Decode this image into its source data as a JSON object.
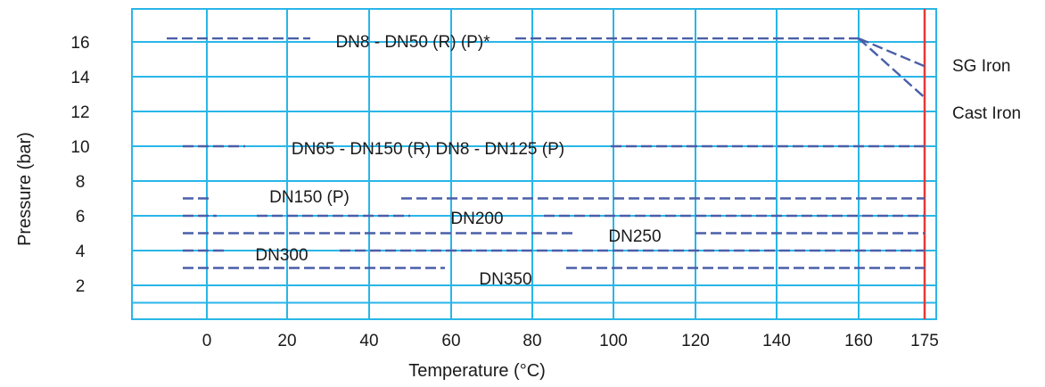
{
  "chart_data": {
    "type": "line",
    "title": "",
    "xlabel": "Temperature (°C)",
    "ylabel": "Pressure (bar)",
    "x_ticks": [
      "0",
      "20",
      "40",
      "60",
      "80",
      "100",
      "120",
      "140",
      "160",
      "175"
    ],
    "y_ticks": [
      "2",
      "4",
      "6",
      "8",
      "10",
      "12",
      "14",
      "16"
    ],
    "grid": true,
    "limit_line": {
      "x": 175,
      "color": "#e53935"
    },
    "colors": {
      "grid": "#29b6e8",
      "series": "#4a5fa8",
      "limit": "#e53935"
    },
    "series": [
      {
        "name": "DN8 - DN50 (R) (P)*",
        "points": [
          [
            -10,
            16.2
          ],
          [
            160,
            16.2
          ]
        ]
      },
      {
        "name": "SG Iron",
        "points": [
          [
            160,
            16.2
          ],
          [
            175,
            14.6
          ]
        ]
      },
      {
        "name": "Cast Iron",
        "points": [
          [
            160,
            16.2
          ],
          [
            175,
            12.8
          ]
        ]
      },
      {
        "name": "DN65 - DN150 (R)  DN8 - DN125 (P)",
        "points": [
          [
            -6,
            10
          ],
          [
            175,
            10
          ]
        ]
      },
      {
        "name": "DN150 (P)",
        "points": [
          [
            -6,
            7
          ],
          [
            175,
            7
          ]
        ]
      },
      {
        "name": "DN200",
        "points": [
          [
            -6,
            6
          ],
          [
            175,
            6
          ]
        ]
      },
      {
        "name": "DN250",
        "points": [
          [
            -6,
            5
          ],
          [
            175,
            5
          ]
        ]
      },
      {
        "name": "DN300",
        "points": [
          [
            -6,
            4
          ],
          [
            175,
            4
          ]
        ]
      },
      {
        "name": "DN350",
        "points": [
          [
            -6,
            3
          ],
          [
            175,
            3
          ]
        ]
      }
    ]
  }
}
